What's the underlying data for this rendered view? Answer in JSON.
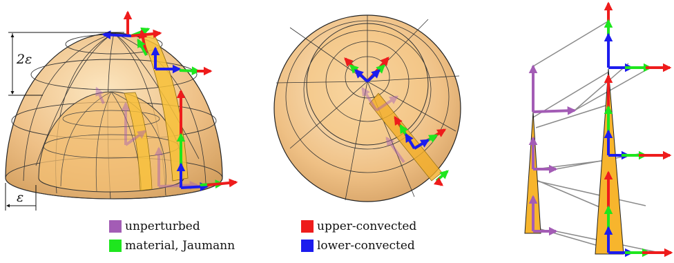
{
  "labels": {
    "height_dim": "2ε",
    "width_dim": "ε"
  },
  "legend": [
    {
      "label": "unperturbed",
      "color": "#a35cb5"
    },
    {
      "label": "material, Jaumann",
      "color": "#1ee61e"
    },
    {
      "label": "upper-convected",
      "color": "#ee1c1c"
    },
    {
      "label": "lower-convected",
      "color": "#1c1cee"
    }
  ],
  "colors": {
    "shell": "#e8a84a",
    "band": "#f7c13a",
    "outline": "#222222",
    "connector": "#888888"
  }
}
